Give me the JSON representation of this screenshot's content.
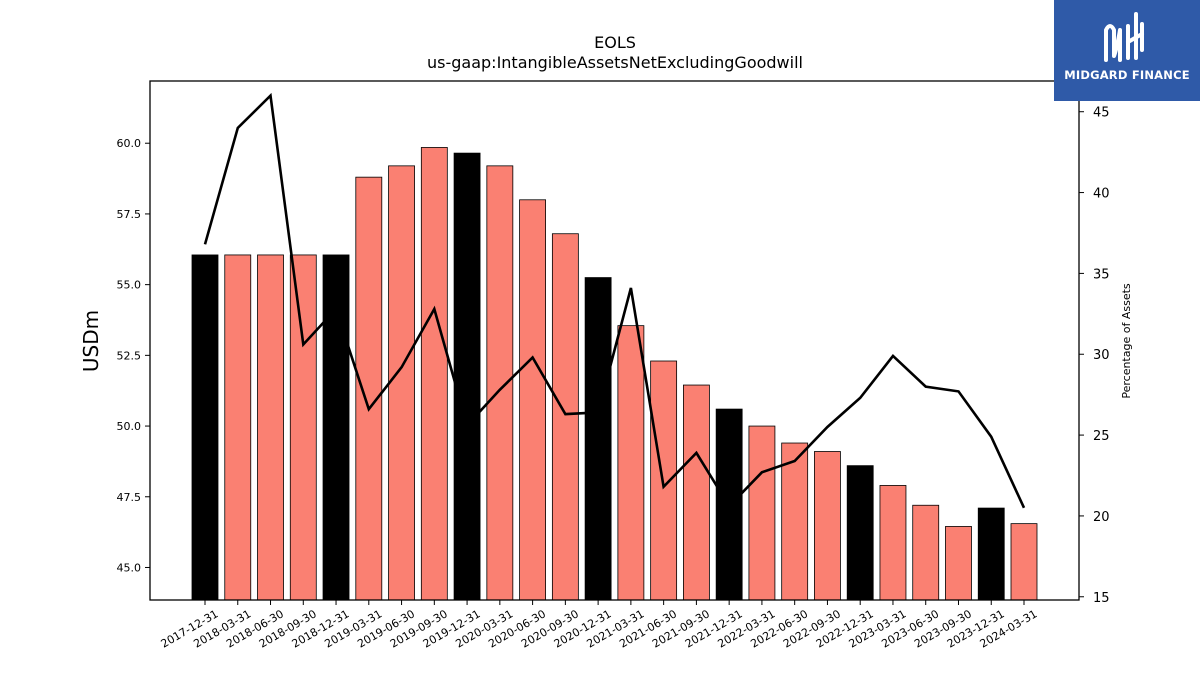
{
  "chart_data": {
    "type": "bar",
    "title": "EOLS",
    "subtitle": "us-gaap:IntangibleAssetsNetExcludingGoodwill",
    "ylabel": "USDm",
    "y2label": "Percentage of Assets",
    "ylim": [
      43.85,
      62.2
    ],
    "y2lim": [
      14.8,
      46.9
    ],
    "yticks": [
      "45.0",
      "47.5",
      "50.0",
      "52.5",
      "55.0",
      "57.5",
      "60.0"
    ],
    "y2ticks": [
      "15",
      "20",
      "25",
      "30",
      "35",
      "40",
      "45"
    ],
    "categories": [
      "2017-12-31",
      "2018-03-31",
      "2018-06-30",
      "2018-09-30",
      "2018-12-31",
      "2019-03-31",
      "2019-06-30",
      "2019-09-30",
      "2019-12-31",
      "2020-03-31",
      "2020-06-30",
      "2020-09-30",
      "2020-12-31",
      "2021-03-31",
      "2021-06-30",
      "2021-09-30",
      "2021-12-31",
      "2022-03-31",
      "2022-06-30",
      "2022-09-30",
      "2022-12-31",
      "2023-03-31",
      "2023-06-30",
      "2023-09-30",
      "2023-12-31",
      "2024-03-31"
    ],
    "series": [
      {
        "type": "bar",
        "values": [
          56.05,
          56.05,
          56.05,
          56.05,
          56.05,
          58.8,
          59.2,
          59.85,
          59.65,
          59.2,
          58.0,
          56.8,
          55.25,
          53.55,
          52.3,
          51.45,
          50.6,
          50.0,
          49.4,
          49.1,
          48.6,
          47.9,
          47.2,
          46.45,
          47.1,
          46.55
        ],
        "highlight": [
          true,
          false,
          false,
          false,
          true,
          false,
          false,
          false,
          true,
          false,
          false,
          false,
          true,
          false,
          false,
          false,
          true,
          false,
          false,
          false,
          true,
          false,
          false,
          false,
          true,
          false
        ],
        "highlight_color": "#000000",
        "color": "#fa8072"
      },
      {
        "type": "line",
        "axis": "right",
        "color": "#000000",
        "values": [
          36.8,
          44.0,
          46.0,
          30.6,
          32.8,
          26.6,
          29.2,
          32.8,
          25.6,
          27.8,
          29.8,
          26.3,
          26.4,
          34.1,
          21.8,
          23.9,
          20.6,
          22.7,
          23.4,
          25.5,
          27.3,
          29.9,
          28.0,
          27.7,
          24.9,
          20.5
        ]
      }
    ]
  },
  "logo": {
    "text": "MIDGARD FINANCE",
    "color": "#2f5aa8"
  }
}
